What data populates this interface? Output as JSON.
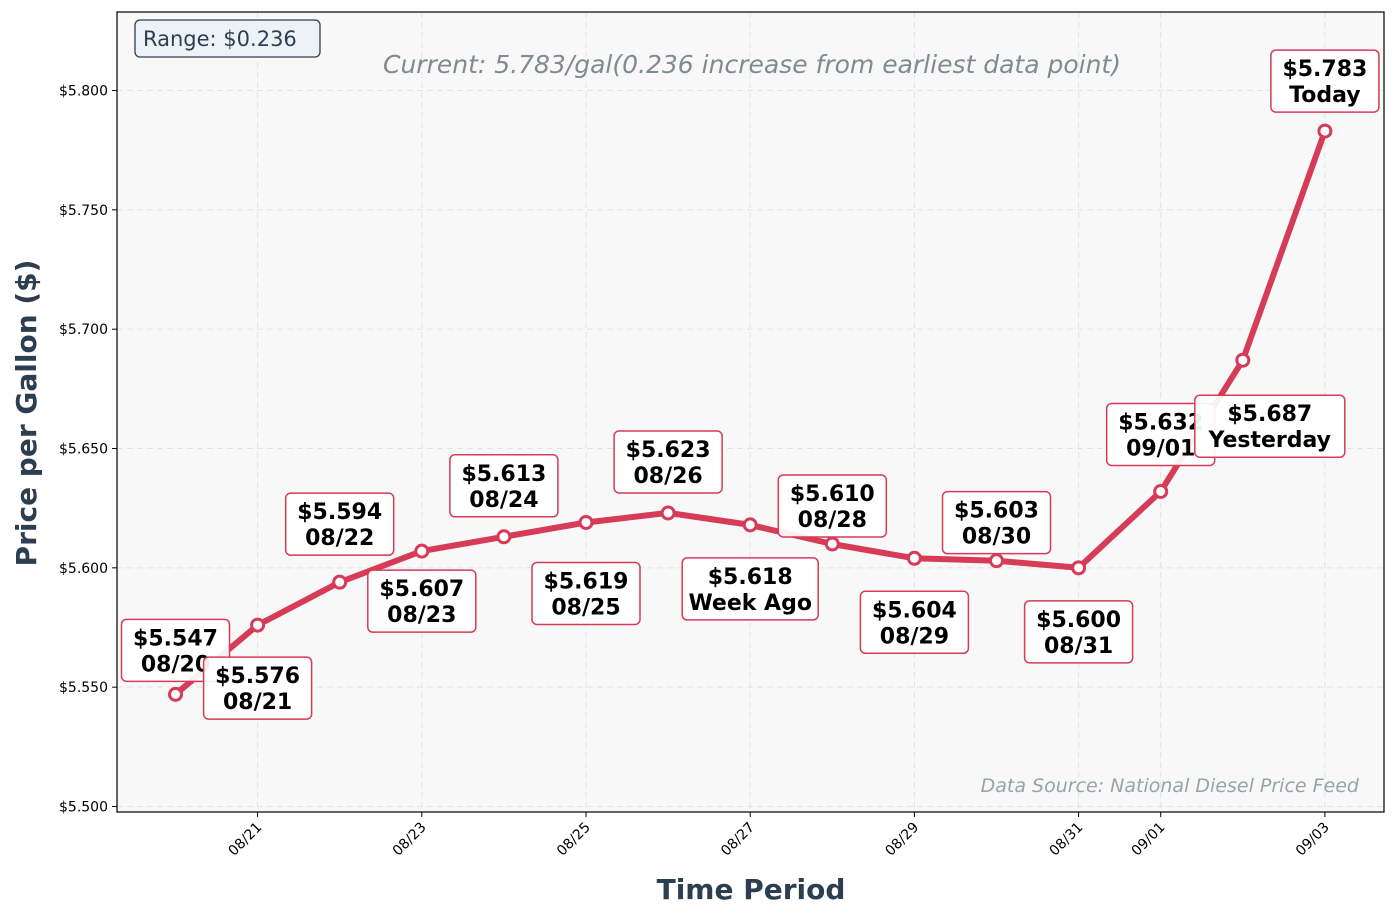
{
  "chart_data": {
    "type": "line",
    "title": "",
    "xlabel": "Time Period",
    "ylabel": "Price per Gallon ($)",
    "ylim": [
      5.497,
      5.832
    ],
    "grid": true,
    "x": [
      "08/20",
      "08/21",
      "08/22",
      "08/23",
      "08/24",
      "08/25",
      "08/26",
      "08/27",
      "08/28",
      "08/29",
      "08/30",
      "08/31",
      "09/01",
      "09/02",
      "09/03"
    ],
    "x_tick_labels": [
      "08/21",
      "08/23",
      "08/25",
      "08/27",
      "08/29",
      "08/31",
      "09/01",
      "09/03"
    ],
    "y_ticks": [
      5.5,
      5.55,
      5.6,
      5.65,
      5.7,
      5.75,
      5.8
    ],
    "y_tick_labels": [
      "$5.500",
      "$5.550",
      "$5.600",
      "$5.650",
      "$5.700",
      "$5.750",
      "$5.800"
    ],
    "series": [
      {
        "values": [
          5.547,
          5.576,
          5.594,
          5.607,
          5.613,
          5.619,
          5.623,
          5.618,
          5.61,
          5.604,
          5.603,
          5.6,
          5.632,
          5.687,
          5.783
        ]
      }
    ],
    "point_labels": [
      {
        "value": "$5.547",
        "tag": "08/20"
      },
      {
        "value": "$5.576",
        "tag": "08/21"
      },
      {
        "value": "$5.594",
        "tag": "08/22"
      },
      {
        "value": "$5.607",
        "tag": "08/23"
      },
      {
        "value": "$5.613",
        "tag": "08/24"
      },
      {
        "value": "$5.619",
        "tag": "08/25"
      },
      {
        "value": "$5.623",
        "tag": "08/26"
      },
      {
        "value": "$5.618",
        "tag": "Week Ago"
      },
      {
        "value": "$5.610",
        "tag": "08/28"
      },
      {
        "value": "$5.604",
        "tag": "08/29"
      },
      {
        "value": "$5.603",
        "tag": "08/30"
      },
      {
        "value": "$5.600",
        "tag": "08/31"
      },
      {
        "value": "$5.632",
        "tag": "09/01"
      },
      {
        "value": "$5.687",
        "tag": "Yesterday"
      },
      {
        "value": "$5.783",
        "tag": "Today"
      }
    ],
    "range_box": "Range: $0.236",
    "current_note": "Current: 5.783/gal(0.236 increase from earliest data point)",
    "source_note": "Data Source: National Diesel Price Feed"
  },
  "colors": {
    "line": "#d63b57",
    "marker_fill": "#ffffff",
    "label_border": "#d63b57",
    "plot_bg": "#f8f8f8",
    "grid": "#e3e3e3",
    "axis_title": "#2c3e50",
    "range_box_bg": "#edf2f6"
  }
}
